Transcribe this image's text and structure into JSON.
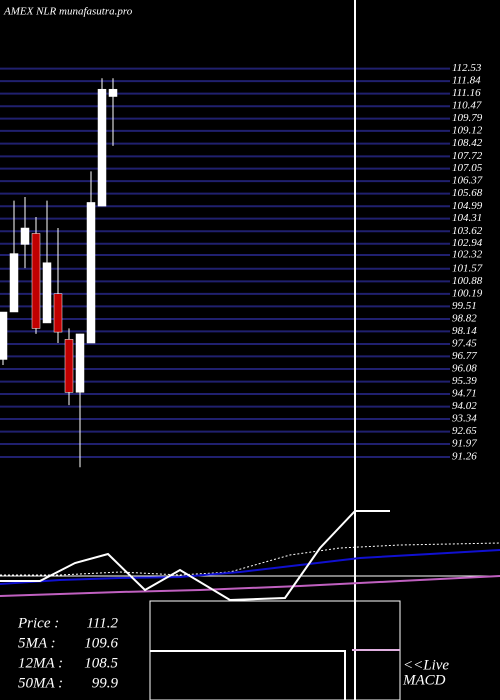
{
  "chart_data": {
    "type": "candlestick",
    "title": "AMEX  NLR munafasutra.pro",
    "open": [
      96.6,
      99.2,
      102.9,
      103.5,
      98.6,
      100.2,
      97.7,
      94.8,
      97.5,
      105.0,
      111.0
    ],
    "high": [
      99.2,
      105.3,
      105.5,
      104.4,
      105.3,
      103.8,
      98.3,
      98.0,
      106.9,
      112.0,
      112.0
    ],
    "low": [
      96.3,
      99.2,
      101.6,
      98.0,
      98.6,
      97.5,
      94.1,
      90.7,
      97.5,
      105.0,
      108.3
    ],
    "close": [
      99.2,
      102.4,
      103.8,
      98.3,
      101.9,
      98.1,
      94.8,
      98.0,
      105.2,
      111.4,
      111.4
    ],
    "up_color": "#ffffff",
    "down_color": "#c00000",
    "ylim": [
      90,
      113
    ],
    "levels": [
      112.53,
      111.84,
      111.16,
      110.47,
      109.79,
      109.12,
      108.42,
      107.72,
      107.05,
      106.37,
      105.68,
      104.99,
      104.31,
      103.62,
      102.94,
      102.32,
      101.57,
      100.88,
      100.19,
      99.51,
      98.82,
      98.14,
      97.45,
      96.77,
      96.08,
      95.39,
      94.71,
      94.02,
      93.34,
      92.65,
      91.97,
      91.26
    ],
    "level_color": "#20206e",
    "indicators": [
      {
        "name": "Price   :",
        "value": 111.2
      },
      {
        "name": "5MA :",
        "value": 109.6
      },
      {
        "name": "12MA :",
        "value": 108.5
      },
      {
        "name": "50MA :",
        "value": 99.9
      }
    ],
    "macd_label": [
      "<<Live",
      "MACD"
    ]
  }
}
